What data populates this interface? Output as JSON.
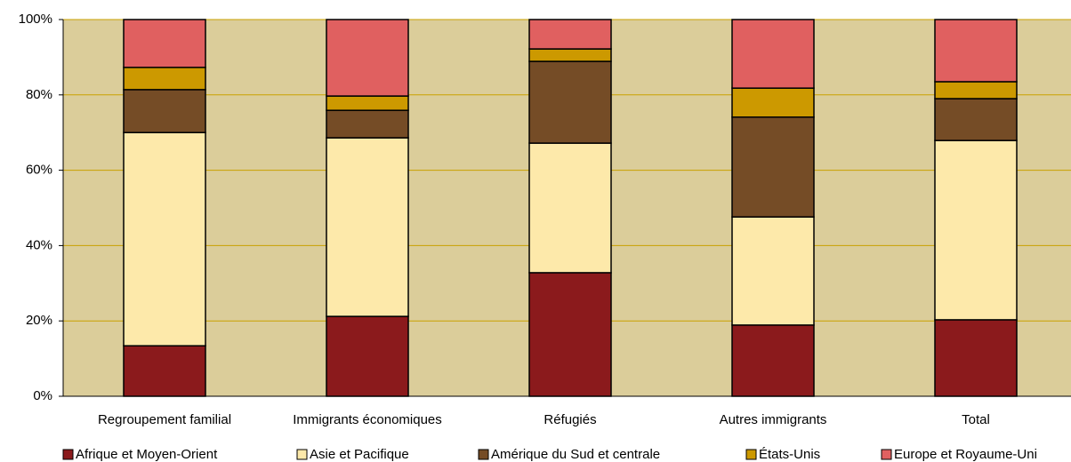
{
  "chart_data": {
    "type": "stacked_bar",
    "categories": [
      "Regroupement familial",
      "Immigrants économiques",
      "Réfugiés",
      "Autres immigrants",
      "Total"
    ],
    "series": [
      {
        "name": "Afrique et Moyen-Orient",
        "color": "#8b1a1c",
        "values": [
          13.4,
          21.2,
          32.8,
          18.9,
          20.3
        ]
      },
      {
        "name": "Asie et Pacifique",
        "color": "#fde9aa",
        "values": [
          56.6,
          47.4,
          34.4,
          28.7,
          47.6
        ]
      },
      {
        "name": "Amérique du Sud et centrale",
        "color": "#754c26",
        "values": [
          11.4,
          7.3,
          21.7,
          26.5,
          11.1
        ]
      },
      {
        "name": "États-Unis",
        "color": "#cc9900",
        "values": [
          5.9,
          3.8,
          3.3,
          7.7,
          4.5
        ]
      },
      {
        "name": "Europe et Royaume-Uni",
        "color": "#e06060",
        "values": [
          12.7,
          20.3,
          7.8,
          18.2,
          16.5
        ]
      }
    ],
    "ylim": [
      0,
      100
    ],
    "yticks": [
      {
        "value": 0,
        "label": "0%"
      },
      {
        "value": 20,
        "label": "20%"
      },
      {
        "value": 40,
        "label": "40%"
      },
      {
        "value": 60,
        "label": "60%"
      },
      {
        "value": 80,
        "label": "80%"
      },
      {
        "value": 100,
        "label": "100%"
      }
    ],
    "grid": true,
    "legend": "bottom"
  }
}
